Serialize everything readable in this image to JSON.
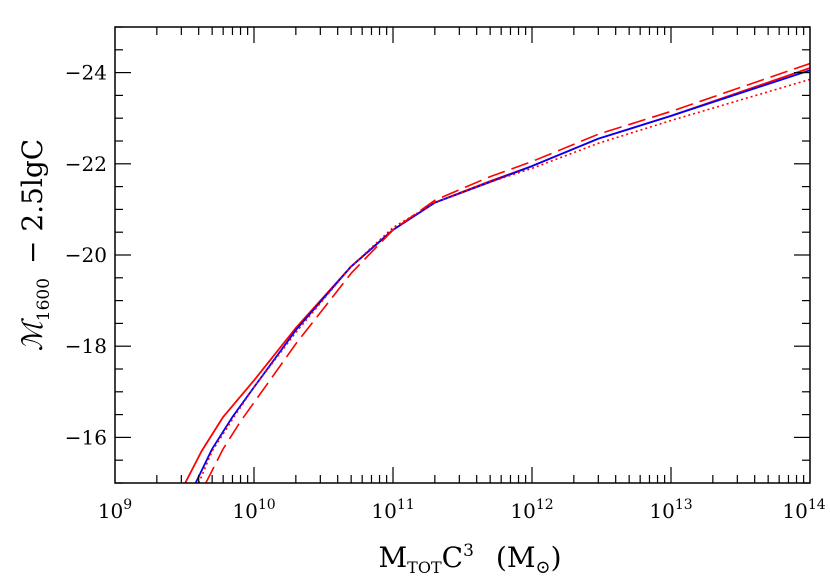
{
  "chart_data": {
    "type": "line",
    "xscale": "log",
    "xlim": [
      1000000000.0,
      100000000000000.0
    ],
    "ylim": [
      -15,
      -25
    ],
    "xlabel": {
      "main": "M",
      "sub": "TOT",
      "mid": "C",
      "sup": "3",
      "unit_open": "(M",
      "unit_sub": "⊙",
      "unit_close": ")"
    },
    "ylabel": {
      "main": "ℳ",
      "sub": "1600",
      "rest": "−  2.5lgC"
    },
    "x_ticks": [
      {
        "value": 1000000000.0,
        "base": "10",
        "exp": "9"
      },
      {
        "value": 10000000000.0,
        "base": "10",
        "exp": "10"
      },
      {
        "value": 100000000000.0,
        "base": "10",
        "exp": "11"
      },
      {
        "value": 1000000000000.0,
        "base": "10",
        "exp": "12"
      },
      {
        "value": 10000000000000.0,
        "base": "10",
        "exp": "13"
      },
      {
        "value": 100000000000000.0,
        "base": "10",
        "exp": "14"
      }
    ],
    "y_ticks": [
      {
        "value": -16,
        "label": "−16"
      },
      {
        "value": -18,
        "label": "−18"
      },
      {
        "value": -20,
        "label": "−20"
      },
      {
        "value": -22,
        "label": "−22"
      },
      {
        "value": -24,
        "label": "−24"
      }
    ],
    "grid": false,
    "series": [
      {
        "color": "#ff0000",
        "style": "solid",
        "x": [
          3200000000.0,
          4200000000.0,
          6000000000.0,
          10000000000.0,
          20000000000.0,
          50000000000.0,
          100000000000.0,
          200000000000.0,
          500000000000.0,
          1000000000000.0,
          3000000000000.0,
          10000000000000.0,
          100000000000000.0
        ],
        "y": [
          -15.0,
          -15.7,
          -16.45,
          -17.25,
          -18.4,
          -19.75,
          -20.55,
          -21.15,
          -21.62,
          -21.95,
          -22.55,
          -23.05,
          -24.1
        ]
      },
      {
        "color": "#0000ff",
        "style": "solid",
        "x": [
          3800000000.0,
          5000000000.0,
          7000000000.0,
          10000000000.0,
          20000000000.0,
          50000000000.0,
          100000000000.0,
          200000000000.0,
          500000000000.0,
          1000000000000.0,
          3000000000000.0,
          10000000000000.0,
          100000000000000.0
        ],
        "y": [
          -15.0,
          -15.75,
          -16.45,
          -17.1,
          -18.35,
          -19.75,
          -20.55,
          -21.15,
          -21.6,
          -21.95,
          -22.55,
          -23.05,
          -24.05
        ]
      },
      {
        "color": "#ff0000",
        "style": "dotted",
        "x": [
          4000000000.0,
          5000000000.0,
          7000000000.0,
          10000000000.0,
          20000000000.0,
          50000000000.0,
          100000000000.0,
          200000000000.0,
          500000000000.0,
          1000000000000.0,
          3000000000000.0,
          10000000000000.0,
          100000000000000.0
        ],
        "y": [
          -15.0,
          -15.7,
          -16.4,
          -17.1,
          -18.3,
          -19.75,
          -20.6,
          -21.15,
          -21.6,
          -21.9,
          -22.45,
          -22.95,
          -23.85
        ]
      },
      {
        "color": "#ff0000",
        "style": "dashed",
        "x": [
          4500000000.0,
          6000000000.0,
          8000000000.0,
          12000000000.0,
          20000000000.0,
          50000000000.0,
          100000000000.0,
          200000000000.0,
          500000000000.0,
          1000000000000.0,
          3000000000000.0,
          10000000000000.0,
          100000000000000.0
        ],
        "y": [
          -15.0,
          -15.75,
          -16.35,
          -17.1,
          -18.05,
          -19.6,
          -20.55,
          -21.2,
          -21.72,
          -22.05,
          -22.65,
          -23.15,
          -24.2
        ]
      }
    ]
  }
}
